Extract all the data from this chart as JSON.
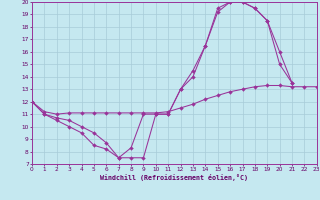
{
  "xlabel": "Windchill (Refroidissement éolien,°C)",
  "background_color": "#c5e8f0",
  "line_color": "#993399",
  "grid_color": "#a8ccd8",
  "xlim": [
    0,
    23
  ],
  "ylim": [
    7,
    20
  ],
  "xticks": [
    0,
    1,
    2,
    3,
    4,
    5,
    6,
    7,
    8,
    9,
    10,
    11,
    12,
    13,
    14,
    15,
    16,
    17,
    18,
    19,
    20,
    21,
    22,
    23
  ],
  "yticks": [
    7,
    8,
    9,
    10,
    11,
    12,
    13,
    14,
    15,
    16,
    17,
    18,
    19,
    20
  ],
  "curve1_x": [
    0,
    1,
    2,
    3,
    4,
    5,
    6,
    7,
    8,
    9,
    10,
    11,
    12,
    13,
    14,
    15,
    16,
    17,
    18,
    19,
    20,
    21
  ],
  "curve1_y": [
    12,
    11,
    10.5,
    10,
    9.5,
    8.5,
    8.2,
    7.5,
    8.3,
    11.0,
    11.0,
    11.0,
    13.0,
    14.0,
    16.5,
    19.2,
    20.0,
    20.0,
    19.5,
    18.5,
    15.0,
    13.5
  ],
  "curve2_x": [
    0,
    1,
    2,
    3,
    4,
    5,
    6,
    7,
    8,
    9,
    10,
    11,
    12,
    13,
    14,
    15,
    16,
    17,
    18,
    19,
    20,
    21
  ],
  "curve2_y": [
    12,
    11,
    10.7,
    10.5,
    10.0,
    9.5,
    8.7,
    7.5,
    7.5,
    7.5,
    11.0,
    11.0,
    13.0,
    14.5,
    16.5,
    19.5,
    20.0,
    20.0,
    19.5,
    18.5,
    16.0,
    13.5
  ],
  "curve3_x": [
    0,
    1,
    2,
    3,
    4,
    5,
    6,
    7,
    8,
    9,
    10,
    11,
    12,
    13,
    14,
    15,
    16,
    17,
    18,
    19,
    20,
    21,
    22,
    23
  ],
  "curve3_y": [
    12,
    11.2,
    11.0,
    11.1,
    11.1,
    11.1,
    11.1,
    11.1,
    11.1,
    11.1,
    11.1,
    11.2,
    11.5,
    11.8,
    12.2,
    12.5,
    12.8,
    13.0,
    13.2,
    13.3,
    13.3,
    13.2,
    13.2,
    13.2
  ]
}
